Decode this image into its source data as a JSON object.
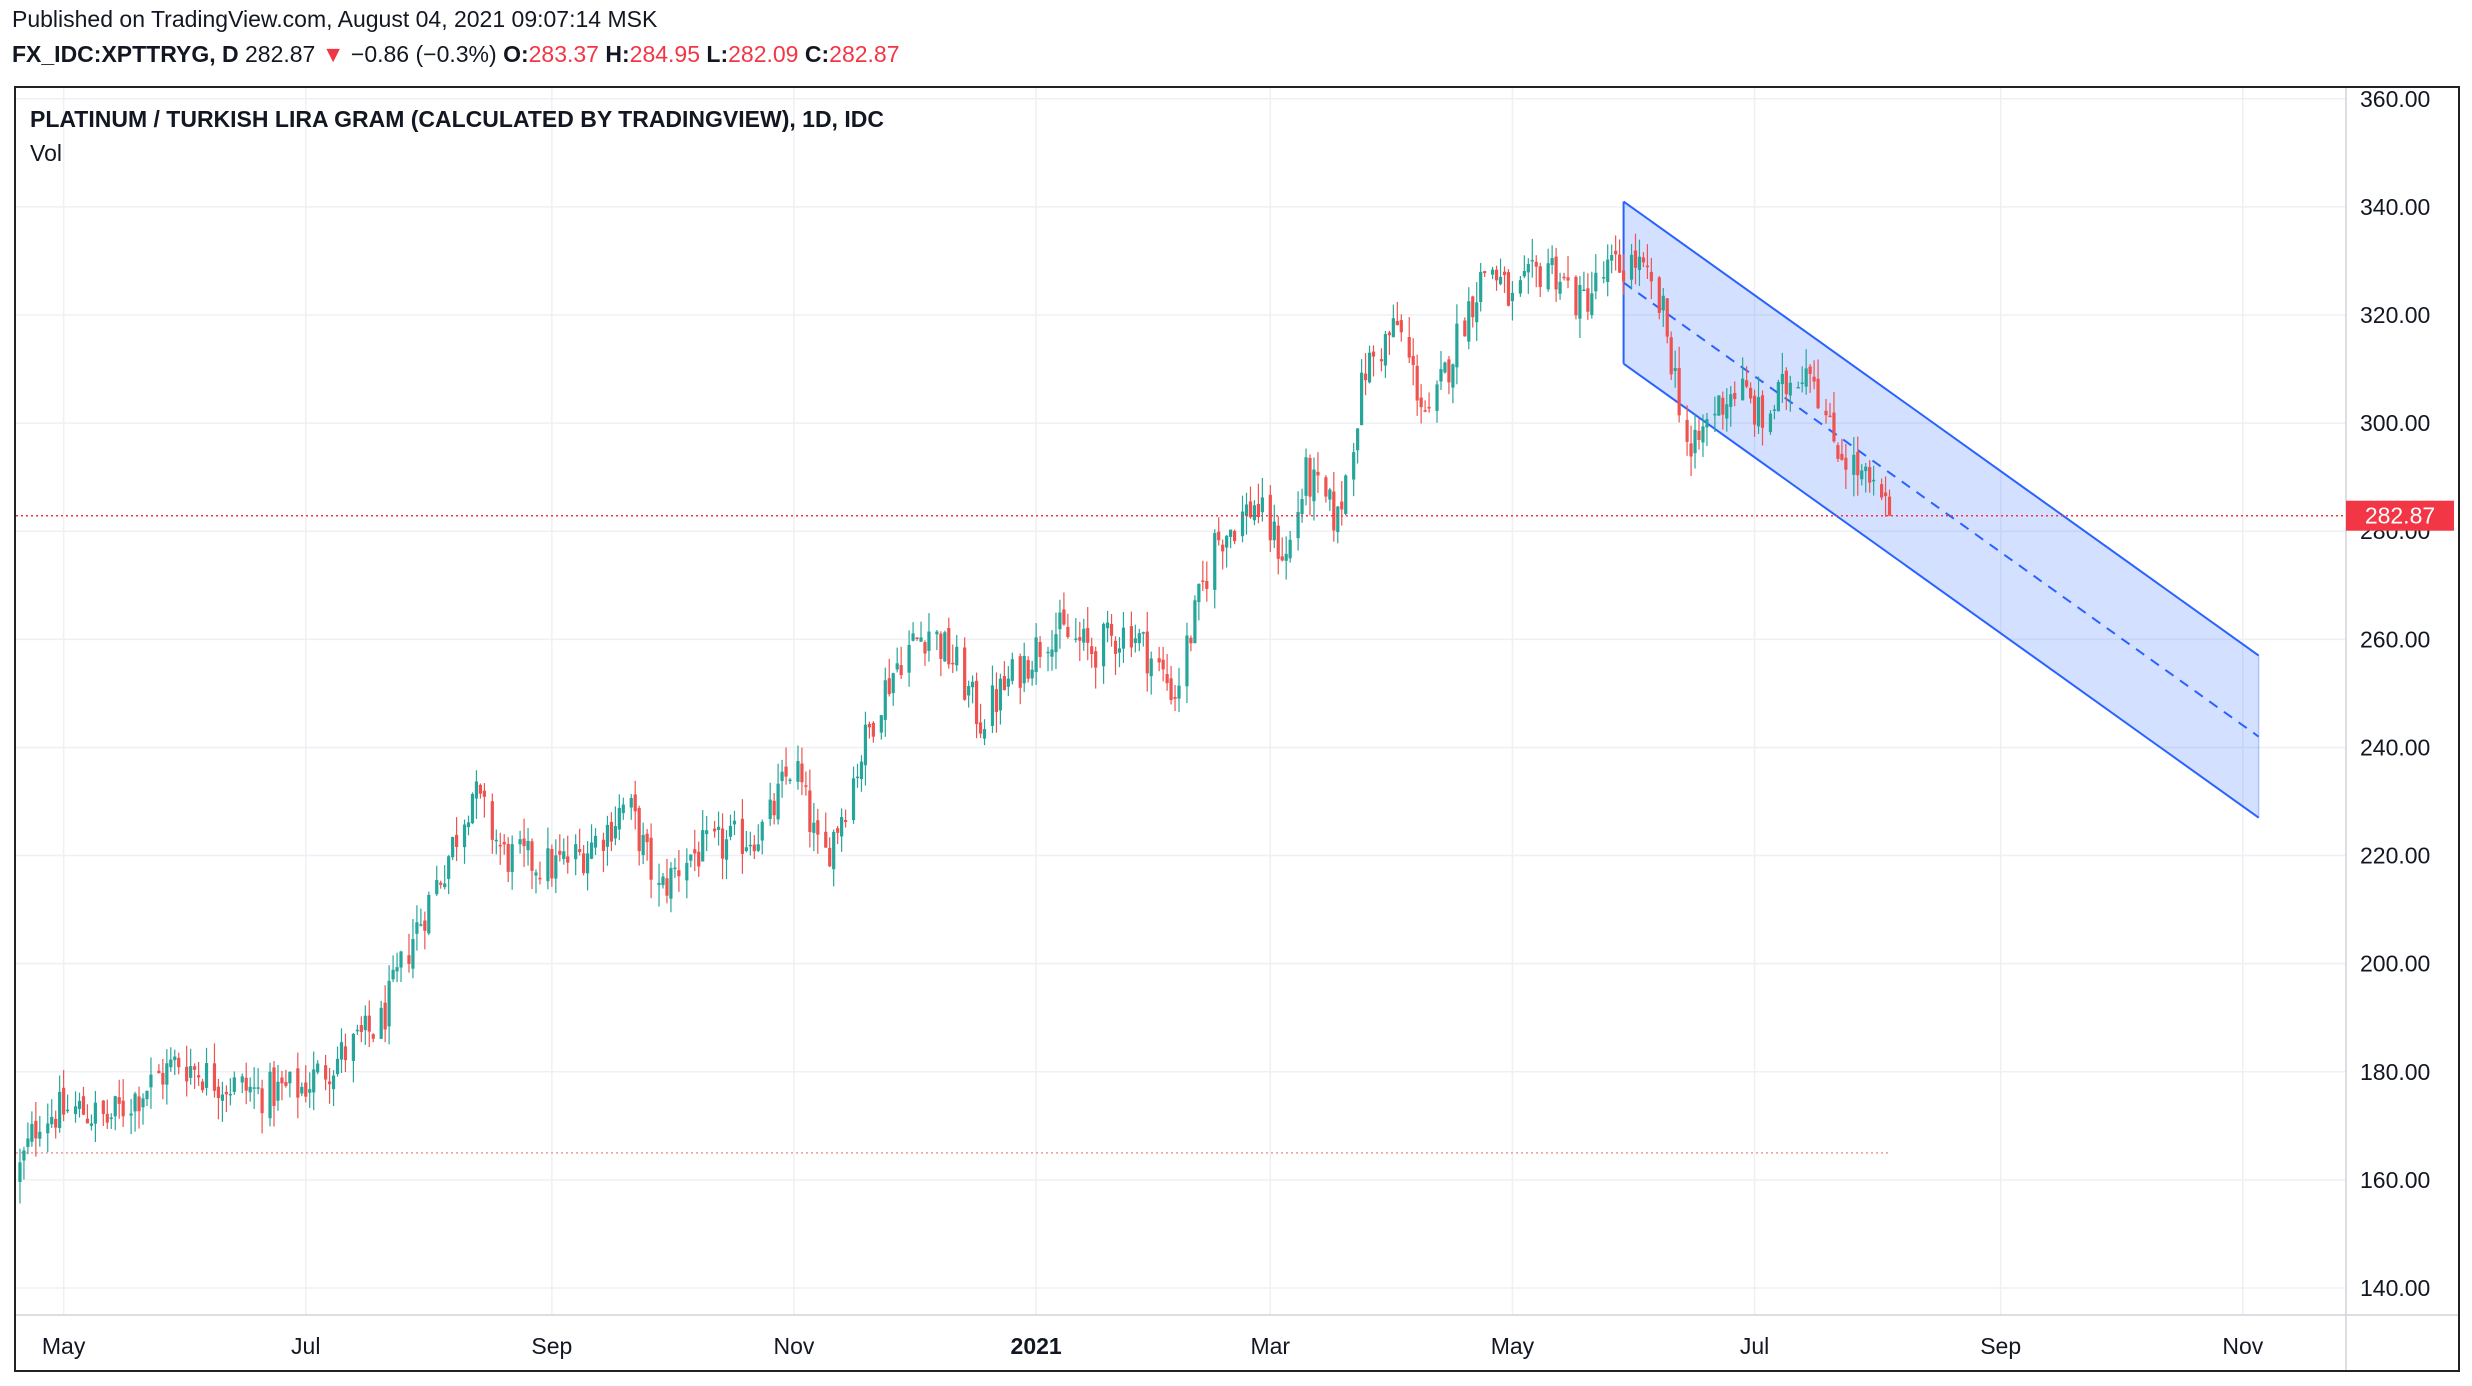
{
  "header": {
    "published": "Published on TradingView.com, August 04, 2021 09:07:14 MSK",
    "symbol": "FX_IDC:XPTTRYG, D",
    "last": "282.87",
    "change_arrow": "▼",
    "change": "−0.86 (−0.3%)",
    "o_label": "O:",
    "o_value": "283.37",
    "h_label": "H:",
    "h_value": "284.95",
    "l_label": "L:",
    "l_value": "282.09",
    "c_label": "C:",
    "c_value": "282.87"
  },
  "legend": {
    "title": "PLATINUM / TURKISH LIRA GRAM (CALCULATED BY TRADINGVIEW), 1D, IDC",
    "vol": "Vol"
  },
  "colors": {
    "up": "#26a69a",
    "down": "#ef5350",
    "grid": "#eef0f3",
    "channel_line": "#2962ff",
    "channel_fill": "#2962ff",
    "price_line": "#f23645",
    "level_line": "#ef9a9a"
  },
  "chart_data": {
    "type": "candlestick",
    "ylim": [
      135,
      362
    ],
    "y_ticks": [
      140,
      160,
      180,
      200,
      220,
      240,
      260,
      280,
      300,
      320,
      340,
      360
    ],
    "y_tick_labels": [
      "140.00",
      "160.00",
      "180.00",
      "200.00",
      "220.00",
      "240.00",
      "260.00",
      "280.00",
      "300.00",
      "320.00",
      "340.00",
      "360.00"
    ],
    "x_range": [
      "2020-04-19",
      "2021-11-27"
    ],
    "x_ticks": [
      {
        "date": "2020-05-01",
        "label": "May",
        "bold": false
      },
      {
        "date": "2020-07-01",
        "label": "Jul",
        "bold": false
      },
      {
        "date": "2020-09-01",
        "label": "Sep",
        "bold": false
      },
      {
        "date": "2020-11-01",
        "label": "Nov",
        "bold": false
      },
      {
        "date": "2021-01-01",
        "label": "2021",
        "bold": true
      },
      {
        "date": "2021-03-01",
        "label": "Mar",
        "bold": false
      },
      {
        "date": "2021-05-01",
        "label": "May",
        "bold": false
      },
      {
        "date": "2021-07-01",
        "label": "Jul",
        "bold": false
      },
      {
        "date": "2021-09-01",
        "label": "Sep",
        "bold": false
      },
      {
        "date": "2021-11-01",
        "label": "Nov",
        "bold": false
      }
    ],
    "series_start": "2020-04-19",
    "series_end": "2021-08-04",
    "close_path": [
      [
        "2020-04-19",
        160
      ],
      [
        "2020-04-25",
        172
      ],
      [
        "2020-05-05",
        173
      ],
      [
        "2020-05-12",
        171
      ],
      [
        "2020-05-20",
        176
      ],
      [
        "2020-05-30",
        182
      ],
      [
        "2020-06-10",
        178
      ],
      [
        "2020-06-20",
        176
      ],
      [
        "2020-06-30",
        177
      ],
      [
        "2020-07-10",
        183
      ],
      [
        "2020-07-20",
        189
      ],
      [
        "2020-07-28",
        205
      ],
      [
        "2020-08-05",
        218
      ],
      [
        "2020-08-12",
        232
      ],
      [
        "2020-08-20",
        220
      ],
      [
        "2020-09-01",
        218
      ],
      [
        "2020-09-08",
        220
      ],
      [
        "2020-09-15",
        225
      ],
      [
        "2020-09-20",
        230
      ],
      [
        "2020-09-28",
        213
      ],
      [
        "2020-10-05",
        220
      ],
      [
        "2020-10-15",
        222
      ],
      [
        "2020-10-25",
        225
      ],
      [
        "2020-11-01",
        238
      ],
      [
        "2020-11-08",
        218
      ],
      [
        "2020-11-15",
        232
      ],
      [
        "2020-11-22",
        248
      ],
      [
        "2020-11-28",
        257
      ],
      [
        "2020-12-05",
        262
      ],
      [
        "2020-12-12",
        255
      ],
      [
        "2020-12-18",
        245
      ],
      [
        "2020-12-25",
        252
      ],
      [
        "2021-01-05",
        262
      ],
      [
        "2021-01-15",
        258
      ],
      [
        "2021-01-25",
        262
      ],
      [
        "2021-02-05",
        250
      ],
      [
        "2021-02-15",
        278
      ],
      [
        "2021-02-25",
        285
      ],
      [
        "2021-03-05",
        275
      ],
      [
        "2021-03-10",
        290
      ],
      [
        "2021-03-18",
        282
      ],
      [
        "2021-03-25",
        310
      ],
      [
        "2021-04-02",
        318
      ],
      [
        "2021-04-10",
        300
      ],
      [
        "2021-04-18",
        318
      ],
      [
        "2021-04-25",
        330
      ],
      [
        "2021-05-01",
        322
      ],
      [
        "2021-05-10",
        330
      ],
      [
        "2021-05-18",
        322
      ],
      [
        "2021-05-25",
        328
      ],
      [
        "2021-06-01",
        330
      ],
      [
        "2021-06-08",
        320
      ],
      [
        "2021-06-15",
        293
      ],
      [
        "2021-06-20",
        302
      ],
      [
        "2021-06-27",
        307
      ],
      [
        "2021-07-03",
        300
      ],
      [
        "2021-07-10",
        308
      ],
      [
        "2021-07-15",
        312
      ],
      [
        "2021-07-20",
        298
      ],
      [
        "2021-07-26",
        292
      ],
      [
        "2021-08-04",
        282.87
      ]
    ],
    "last_price": 282.87,
    "last_price_label": "282.87",
    "horizontal_level": 165,
    "horizontal_level_end": "2021-08-04",
    "channel": {
      "upper_start": [
        "2021-05-29",
        341
      ],
      "upper_end": [
        "2021-11-05",
        257
      ],
      "lower_start": [
        "2021-05-29",
        311
      ],
      "lower_end": [
        "2021-11-05",
        227
      ],
      "mid_start": [
        "2021-05-29",
        326
      ],
      "mid_end": [
        "2021-11-05",
        242
      ]
    }
  }
}
